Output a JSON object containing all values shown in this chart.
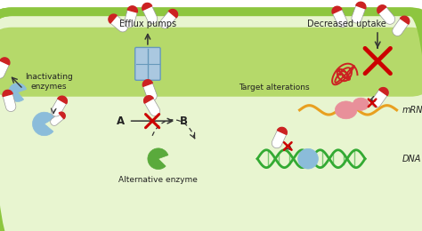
{
  "fig_width": 4.74,
  "fig_height": 2.6,
  "dpi": 100,
  "bg_color": "#ffffff",
  "cell_fill": "#e8f5d0",
  "cell_edge": "#8dc63f",
  "cell_wall_fill": "#b5d96a",
  "labels": {
    "efflux_pumps": "Efflux pumps",
    "decreased_uptake": "Decreased uptake",
    "inactivating_enzymes": "Inactivating\nenzymes",
    "alternative_enzyme": "Alternative enzyme",
    "target_alterations": "Target alterations",
    "mrna": "mRNA",
    "dna": "DNA",
    "A": "A",
    "B": "B"
  },
  "colors": {
    "red": "#cc2222",
    "blue_light": "#8bbcda",
    "blue_mid": "#5b8db8",
    "green_cell": "#8dc63f",
    "green_enzyme": "#5aaa3c",
    "pink": "#e8909a",
    "orange_mrna": "#e8a020",
    "white": "#ffffff",
    "dark": "#222222",
    "cross_red": "#cc0000",
    "pump_blue": "#aac8e0",
    "pump_edge": "#6699bb"
  }
}
